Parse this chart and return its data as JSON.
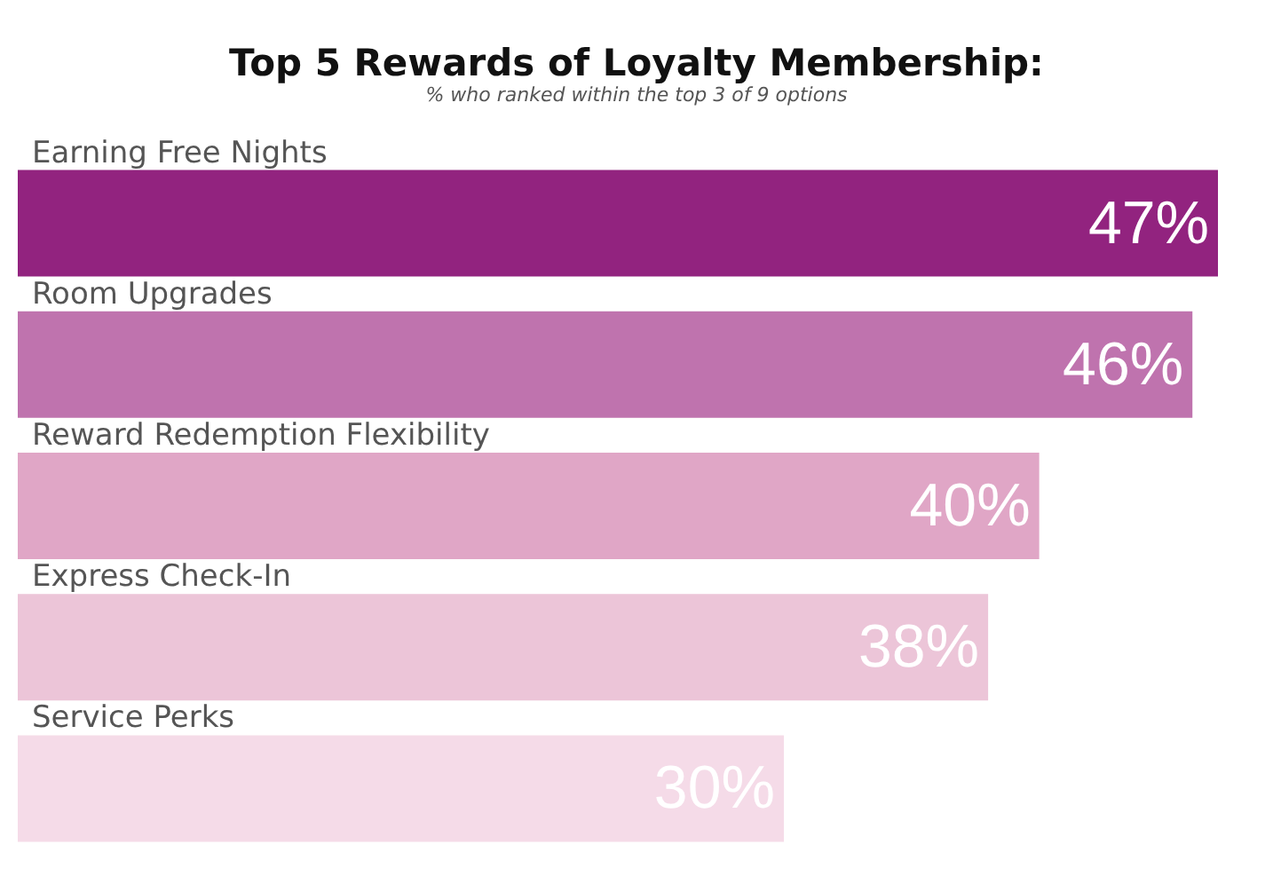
{
  "chart_data": {
    "type": "bar",
    "orientation": "horizontal",
    "title": "Top 5 Rewards of Loyalty Membership:",
    "subtitle": "% who ranked within the top 3 of 9 options",
    "categories": [
      "Earning Free Nights",
      "Room Upgrades",
      "Reward Redemption Flexibility",
      "Express Check-In",
      "Service Perks"
    ],
    "values": [
      47,
      46,
      40,
      38,
      30
    ],
    "colors": [
      "#92237f",
      "#bf73ae",
      "#e0a6c6",
      "#ecc5d8",
      "#f5dbe8"
    ],
    "value_labels": [
      "47%",
      "46%",
      "40%",
      "38%",
      "30%"
    ]
  }
}
